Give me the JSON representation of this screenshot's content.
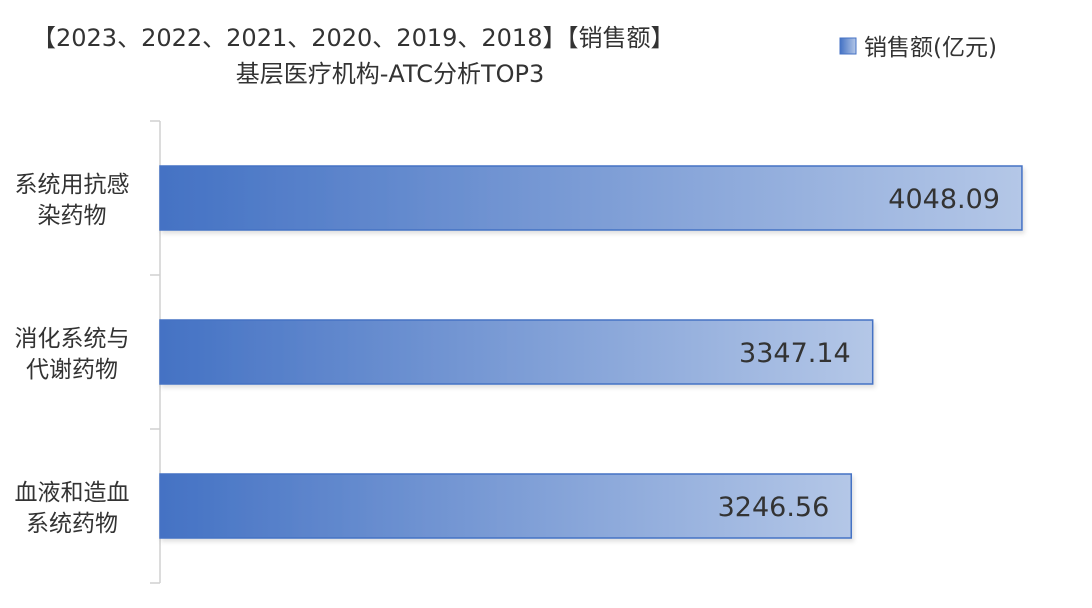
{
  "chart_data": {
    "type": "bar",
    "orientation": "horizontal",
    "title_lines": [
      "【2023、2022、2021、2020、2019、2018】【销售额】",
      "基层医疗机构-ATC分析TOP3"
    ],
    "categories": [
      {
        "lines": [
          "系统用抗感",
          "染药物"
        ]
      },
      {
        "lines": [
          "消化系统与",
          "代谢药物"
        ]
      },
      {
        "lines": [
          "血液和造血",
          "系统药物"
        ]
      }
    ],
    "series": [
      {
        "name": "销售额(亿元)",
        "values": [
          4048.09,
          3347.14,
          3246.56
        ]
      }
    ],
    "value_labels": [
      "4048.09",
      "3347.14",
      "3246.56"
    ],
    "xlim": [
      0,
      4100
    ],
    "legend_position": "top-right",
    "grid": false,
    "colors": {
      "bar_start": "#4472c4",
      "bar_end": "#b4c7e7",
      "bar_border": "#4472c4",
      "axis": "#d0d0d0"
    }
  }
}
